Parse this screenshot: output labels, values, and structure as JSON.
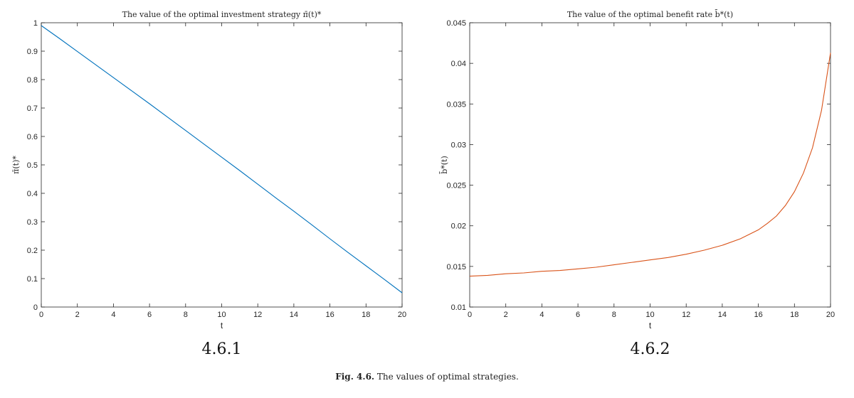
{
  "figure": {
    "caption_label": "Fig. 4.6.",
    "caption_text": " The values of optimal strategies."
  },
  "chart_data": [
    {
      "type": "line",
      "title": "The value of the optimal investment strategy π̄(t)*",
      "xlabel": "t",
      "ylabel": "π̄(t)*",
      "sublabel": "4.6.1",
      "xlim": [
        0,
        20
      ],
      "ylim": [
        0,
        1
      ],
      "xticks": [
        0,
        2,
        4,
        6,
        8,
        10,
        12,
        14,
        16,
        18,
        20
      ],
      "yticks": [
        0,
        0.1,
        0.2,
        0.3,
        0.4,
        0.5,
        0.6,
        0.7,
        0.8,
        0.9,
        1
      ],
      "ytick_labels": [
        "0",
        "0.1",
        "0.2",
        "0.3",
        "0.4",
        "0.5",
        "0.6",
        "0.7",
        "0.8",
        "0.9",
        "1"
      ],
      "grid": false,
      "color": "#0072bd",
      "series": [
        {
          "x": [
            0,
            1,
            2,
            3,
            4,
            5,
            6,
            7,
            8,
            9,
            10,
            11,
            12,
            13,
            14,
            15,
            16,
            17,
            18,
            19,
            20
          ],
          "values": [
            0.99,
            0.945,
            0.899,
            0.853,
            0.807,
            0.761,
            0.715,
            0.668,
            0.621,
            0.574,
            0.527,
            0.48,
            0.432,
            0.384,
            0.337,
            0.289,
            0.24,
            0.192,
            0.145,
            0.098,
            0.05
          ]
        }
      ]
    },
    {
      "type": "line",
      "title": "The value of the optimal benefit rate b̄*(t)",
      "xlabel": "t",
      "ylabel": "b̄*(t)",
      "sublabel": "4.6.2",
      "xlim": [
        0,
        20
      ],
      "ylim": [
        0.01,
        0.045
      ],
      "xticks": [
        0,
        2,
        4,
        6,
        8,
        10,
        12,
        14,
        16,
        18,
        20
      ],
      "yticks": [
        0.01,
        0.015,
        0.02,
        0.025,
        0.03,
        0.035,
        0.04,
        0.045
      ],
      "ytick_labels": [
        "0.01",
        "0.015",
        "0.02",
        "0.025",
        "0.03",
        "0.035",
        "0.04",
        "0.045"
      ],
      "grid": false,
      "color": "#d95319",
      "series": [
        {
          "x": [
            0,
            1,
            2,
            3,
            4,
            5,
            6,
            7,
            8,
            9,
            10,
            11,
            12,
            13,
            14,
            15,
            16,
            16.5,
            17,
            17.5,
            18,
            18.5,
            19,
            19.5,
            20
          ],
          "values": [
            0.0138,
            0.0139,
            0.0141,
            0.0142,
            0.0144,
            0.0145,
            0.0147,
            0.0149,
            0.0152,
            0.0155,
            0.0158,
            0.0161,
            0.0165,
            0.017,
            0.0176,
            0.0184,
            0.0195,
            0.0203,
            0.0212,
            0.0225,
            0.0242,
            0.0265,
            0.0296,
            0.0342,
            0.0413
          ]
        }
      ]
    }
  ]
}
